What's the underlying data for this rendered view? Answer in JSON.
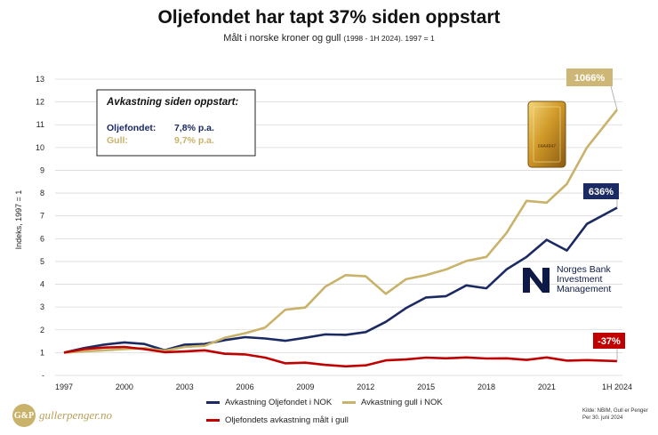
{
  "title": "Oljefondet har tapt 37% siden oppstart",
  "subtitle_main": "Målt i norske kroner og gull",
  "subtitle_small": "(1998 - 1H 2024). 1997 = 1",
  "colors": {
    "fund": "#1b2a63",
    "gold": "#c9b26a",
    "gold_label": "#cdb676",
    "red": "#c00000",
    "grid": "#d9d9d9"
  },
  "chart_data": {
    "type": "line",
    "ylabel": "Indeks, 1997 = 1",
    "ylim": [
      0,
      13
    ],
    "yticks": [
      "-",
      "1",
      "2",
      "3",
      "4",
      "5",
      "6",
      "7",
      "8",
      "9",
      "10",
      "11",
      "12",
      "13"
    ],
    "xlim": [
      1997,
      2024.5
    ],
    "x_ticks": [
      {
        "x": 1997,
        "label": "1997"
      },
      {
        "x": 2000,
        "label": "2000"
      },
      {
        "x": 2003,
        "label": "2003"
      },
      {
        "x": 2006,
        "label": "2006"
      },
      {
        "x": 2009,
        "label": "2009"
      },
      {
        "x": 2012,
        "label": "2012"
      },
      {
        "x": 2015,
        "label": "2015"
      },
      {
        "x": 2018,
        "label": "2018"
      },
      {
        "x": 2021,
        "label": "2021"
      },
      {
        "x": 2024.5,
        "label": "1H 2024"
      }
    ],
    "x": [
      1997,
      1998,
      1999,
      2000,
      2001,
      2002,
      2003,
      2004,
      2005,
      2006,
      2007,
      2008,
      2009,
      2010,
      2011,
      2012,
      2013,
      2014,
      2015,
      2016,
      2017,
      2018,
      2019,
      2020,
      2021,
      2022,
      2023,
      2024.5
    ],
    "series": [
      {
        "name": "Avkastning Oljefondet i NOK",
        "color": "#1b2a63",
        "values": [
          1.0,
          1.2,
          1.35,
          1.45,
          1.38,
          1.1,
          1.35,
          1.38,
          1.55,
          1.68,
          1.62,
          1.52,
          1.65,
          1.8,
          1.78,
          1.9,
          2.35,
          2.95,
          3.42,
          3.48,
          3.95,
          3.82,
          4.65,
          5.2,
          5.95,
          5.48,
          6.65,
          7.36
        ],
        "end_label": "636%"
      },
      {
        "name": "Avkastning gull i NOK",
        "color": "#c9b26a",
        "values": [
          1.0,
          1.05,
          1.1,
          1.15,
          1.2,
          1.08,
          1.25,
          1.3,
          1.65,
          1.85,
          2.1,
          2.88,
          2.98,
          3.9,
          4.4,
          4.35,
          3.58,
          4.22,
          4.4,
          4.65,
          5.02,
          5.2,
          6.25,
          7.66,
          7.58,
          8.4,
          10.0,
          11.66
        ],
        "end_label": "1066%"
      },
      {
        "name": "Oljefondets avkastning målt i gull",
        "color": "#c00000",
        "values": [
          1.0,
          1.15,
          1.22,
          1.25,
          1.15,
          1.02,
          1.05,
          1.1,
          0.95,
          0.92,
          0.78,
          0.53,
          0.56,
          0.46,
          0.4,
          0.44,
          0.66,
          0.7,
          0.78,
          0.75,
          0.79,
          0.74,
          0.75,
          0.68,
          0.79,
          0.65,
          0.67,
          0.63
        ],
        "end_label": "-37%"
      }
    ]
  },
  "annotation_box": {
    "heading": "Avkastning siden oppstart:",
    "rows": [
      {
        "label": "Oljefondet:",
        "value": "7,8% p.a."
      },
      {
        "label": "Gull:",
        "value": "9,7% p.a."
      }
    ]
  },
  "gold_bar_text": "64A4847",
  "nbim_lines": [
    "Norges Bank",
    "Investment",
    "Management"
  ],
  "logo_mark": "G&P",
  "logo_text": "gullerpenger.no",
  "source_lines": [
    "Kilde: NBIM, Gull er Penger",
    "Per 30. juni 2024"
  ]
}
